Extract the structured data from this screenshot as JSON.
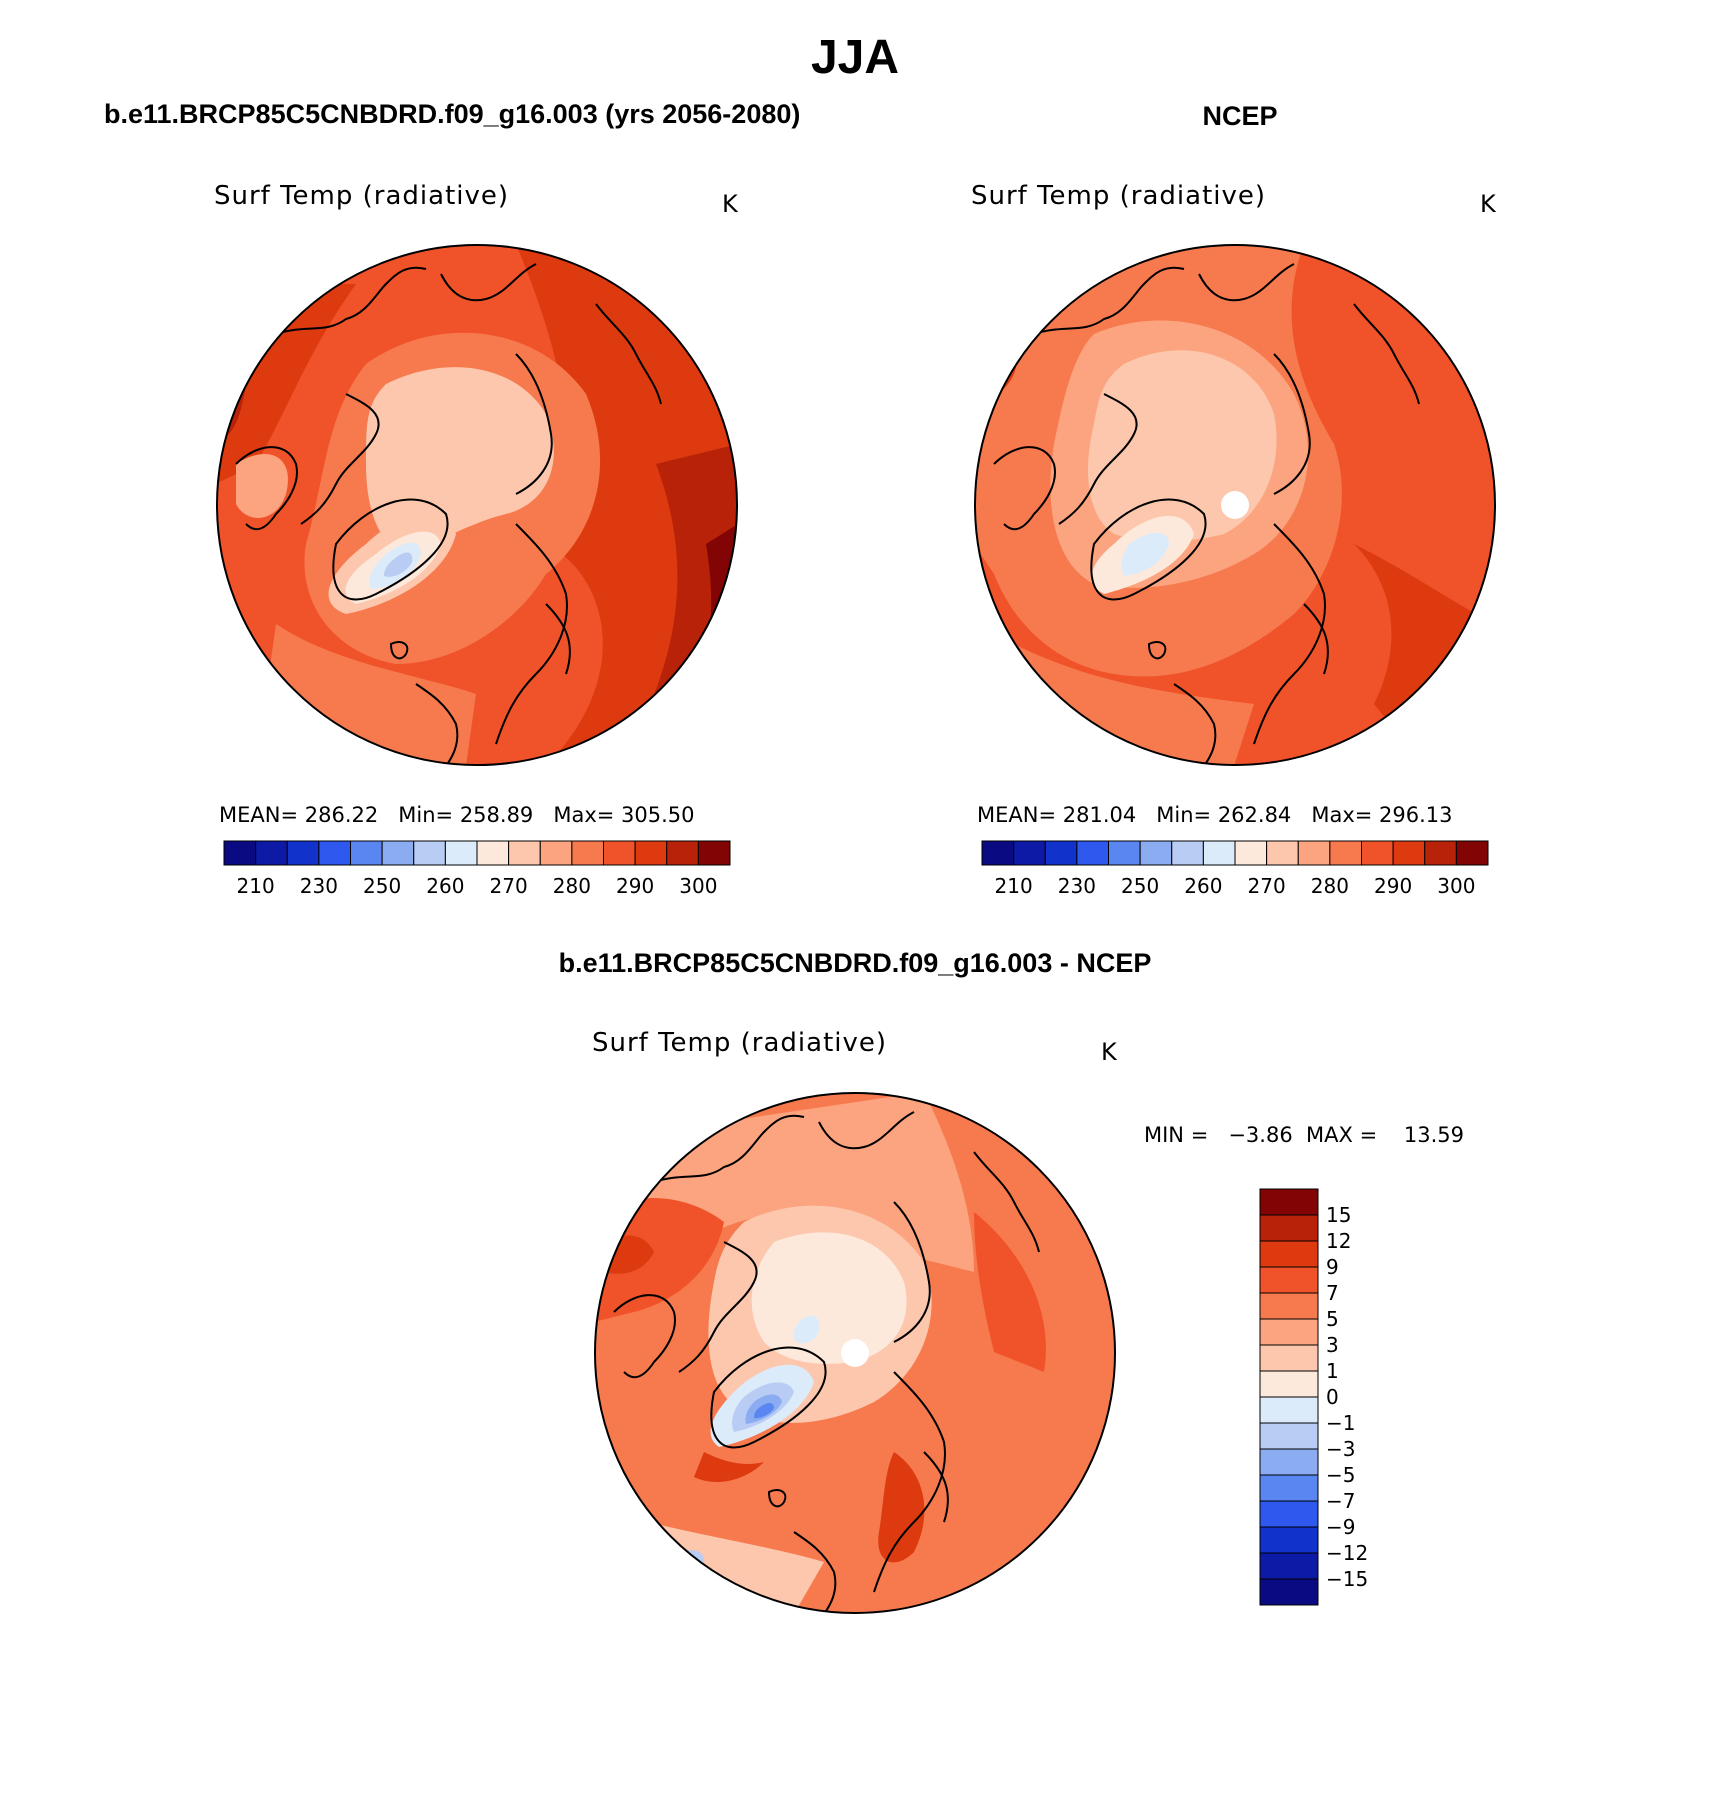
{
  "figure": {
    "season": "JJA",
    "panel_left_heading": "b.e11.BRCP85C5CNBDRD.f09_g16.003 (yrs 2056-2080)",
    "panel_right_heading": "NCEP",
    "panel_diff_heading": "b.e11.BRCP85C5CNBDRD.f09_g16.003 - NCEP"
  },
  "panels": {
    "model": {
      "variable": "Surf Temp (radiative)",
      "units": "K",
      "stats": {
        "mean_label": "MEAN=",
        "mean": "286.22",
        "min_label": "Min=",
        "min": "258.89",
        "max_label": "Max=",
        "max": "305.50"
      }
    },
    "obs": {
      "variable": "Surf Temp (radiative)",
      "units": "K",
      "stats": {
        "mean_label": "MEAN=",
        "mean": "281.04",
        "min_label": "Min=",
        "min": "262.84",
        "max_label": "Max=",
        "max": "296.13"
      }
    },
    "diff": {
      "variable": "Surf Temp (radiative)",
      "units": "K",
      "min_label": "MIN =",
      "min": "−3.86",
      "max_label": "MAX =",
      "max": "13.59"
    }
  },
  "colorbars": {
    "absolute": {
      "colors": [
        "#0a0a82",
        "#0c1aa6",
        "#1232cc",
        "#2e58ee",
        "#5a86f2",
        "#8cacf2",
        "#b8ccf4",
        "#dcebfa",
        "#fde9dc",
        "#fcc7ad",
        "#fba47f",
        "#f77a4f",
        "#f0532a",
        "#dd3a10",
        "#b82208",
        "#820404"
      ],
      "labels": [
        "210",
        "230",
        "250",
        "260",
        "270",
        "280",
        "290",
        "300"
      ]
    },
    "difference": {
      "colors": [
        "#0a0a82",
        "#0c1aa6",
        "#1232cc",
        "#2e58ee",
        "#5a86f2",
        "#8cacf2",
        "#b8ccf4",
        "#dcebfa",
        "#fde9dc",
        "#fcc7ad",
        "#fba47f",
        "#f77a4f",
        "#f0532a",
        "#dd3a10",
        "#b82208",
        "#820404"
      ],
      "labels": [
        "15",
        "12",
        "9",
        "7",
        "5",
        "3",
        "1",
        "0",
        "−1",
        "−3",
        "−5",
        "−7",
        "−9",
        "−12",
        "−15"
      ]
    }
  },
  "map_colors": {
    "deep_red": "#b82208",
    "red": "#dd3a10",
    "red_orange": "#f0532a",
    "orange": "#f77a4f",
    "salmon": "#fba47f",
    "peach": "#fcc7ad",
    "cream": "#fde9dc",
    "pale_blue": "#dcebfa",
    "light_blue": "#b8ccf4",
    "blue": "#8cacf2",
    "mid_blue": "#5a86f2",
    "dark_red": "#820404",
    "pole_hole": "#ffffff"
  }
}
